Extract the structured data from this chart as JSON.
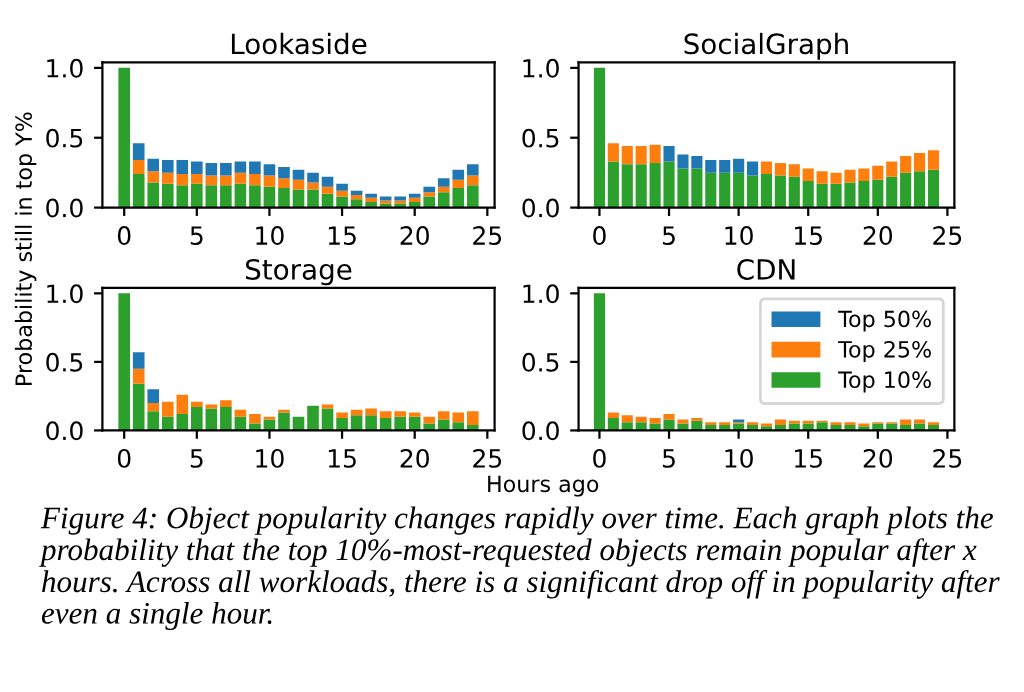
{
  "chart_data": [
    {
      "type": "bar",
      "title": "Lookaside",
      "ylabel": "Probability still in top Y%",
      "stacked": true,
      "x": [
        0,
        1,
        2,
        3,
        4,
        5,
        6,
        7,
        8,
        9,
        10,
        11,
        12,
        13,
        14,
        15,
        16,
        17,
        18,
        19,
        20,
        21,
        22,
        23,
        24
      ],
      "xlim": [
        -1.5,
        25.5
      ],
      "xticks": [
        0,
        5,
        10,
        15,
        20,
        25
      ],
      "ylim": [
        0,
        1.04
      ],
      "yticks": [
        {
          "value": 0,
          "label": "0.0"
        },
        {
          "value": 0.5,
          "label": "0.5"
        },
        {
          "value": 1,
          "label": "1.0"
        }
      ],
      "legend": false,
      "series": [
        {
          "color": "#2ca02c",
          "values": [
            1.0,
            0.24,
            0.18,
            0.17,
            0.16,
            0.17,
            0.16,
            0.16,
            0.17,
            0.16,
            0.15,
            0.14,
            0.13,
            0.13,
            0.1,
            0.08,
            0.06,
            0.04,
            0.03,
            0.03,
            0.04,
            0.08,
            0.11,
            0.14,
            0.16
          ]
        },
        {
          "color": "#ff7f0e",
          "values": [
            0,
            0.1,
            0.08,
            0.08,
            0.08,
            0.07,
            0.07,
            0.07,
            0.08,
            0.08,
            0.08,
            0.07,
            0.07,
            0.05,
            0.05,
            0.04,
            0.03,
            0.03,
            0.02,
            0.02,
            0.03,
            0.03,
            0.04,
            0.06,
            0.07
          ]
        },
        {
          "color": "#1f77b4",
          "values": [
            0,
            0.12,
            0.09,
            0.09,
            0.1,
            0.09,
            0.09,
            0.09,
            0.08,
            0.09,
            0.08,
            0.08,
            0.07,
            0.07,
            0.07,
            0.05,
            0.03,
            0.03,
            0.03,
            0.03,
            0.03,
            0.04,
            0.06,
            0.07,
            0.08
          ]
        }
      ]
    },
    {
      "type": "bar",
      "title": "SocialGraph",
      "stacked": true,
      "x": [
        0,
        1,
        2,
        3,
        4,
        5,
        6,
        7,
        8,
        9,
        10,
        11,
        12,
        13,
        14,
        15,
        16,
        17,
        18,
        19,
        20,
        21,
        22,
        23,
        24
      ],
      "xlim": [
        -1.5,
        25.5
      ],
      "xticks": [
        0,
        5,
        10,
        15,
        20,
        25
      ],
      "ylim": [
        0,
        1.04
      ],
      "yticks": [
        {
          "value": 0,
          "label": "0.0"
        },
        {
          "value": 0.5,
          "label": "0.5"
        },
        {
          "value": 1,
          "label": "1.0"
        }
      ],
      "legend": false,
      "series": [
        {
          "color": "#2ca02c",
          "values": [
            1.0,
            0.33,
            0.31,
            0.31,
            0.32,
            0.33,
            0.28,
            0.28,
            0.25,
            0.25,
            0.25,
            0.23,
            0.24,
            0.23,
            0.22,
            0.19,
            0.17,
            0.17,
            0.18,
            0.19,
            0.2,
            0.22,
            0.25,
            0.26,
            0.27
          ]
        },
        {
          "color": "#ff7f0e",
          "values": [
            0,
            0.13,
            0.13,
            0.13,
            0.13,
            0,
            0,
            0,
            0,
            0,
            0,
            0,
            0.09,
            0.09,
            0.09,
            0.09,
            0.09,
            0.08,
            0.09,
            0.09,
            0.1,
            0.11,
            0.12,
            0.13,
            0.14
          ]
        },
        {
          "color": "#1f77b4",
          "values": [
            0,
            0,
            0,
            0,
            0,
            0.11,
            0.1,
            0.09,
            0.09,
            0.09,
            0.1,
            0.1,
            0,
            0,
            0,
            0,
            0,
            0,
            0,
            0,
            0,
            0,
            0,
            0,
            0
          ]
        }
      ]
    },
    {
      "type": "bar",
      "title": "Storage",
      "xlabel": "Hours ago",
      "stacked": true,
      "x": [
        0,
        1,
        2,
        3,
        4,
        5,
        6,
        7,
        8,
        9,
        10,
        11,
        12,
        13,
        14,
        15,
        16,
        17,
        18,
        19,
        20,
        21,
        22,
        23,
        24
      ],
      "xlim": [
        -1.5,
        25.5
      ],
      "xticks": [
        0,
        5,
        10,
        15,
        20,
        25
      ],
      "ylim": [
        0,
        1.04
      ],
      "yticks": [
        {
          "value": 0,
          "label": "0.0"
        },
        {
          "value": 0.5,
          "label": "0.5"
        },
        {
          "value": 1,
          "label": "1.0"
        }
      ],
      "legend": false,
      "series": [
        {
          "color": "#2ca02c",
          "values": [
            1.0,
            0.34,
            0.14,
            0.1,
            0.12,
            0.17,
            0.16,
            0.17,
            0.1,
            0.05,
            0.08,
            0.13,
            0.1,
            0.18,
            0.16,
            0.09,
            0.11,
            0.11,
            0.09,
            0.1,
            0.1,
            0.05,
            0.08,
            0.06,
            0.04
          ]
        },
        {
          "color": "#ff7f0e",
          "values": [
            0,
            0.11,
            0.06,
            0.11,
            0.14,
            0.04,
            0.03,
            0.05,
            0.05,
            0.07,
            0.02,
            0.02,
            0,
            0,
            0.03,
            0.04,
            0.04,
            0.05,
            0.05,
            0.04,
            0.03,
            0.05,
            0.06,
            0.07,
            0.1
          ]
        },
        {
          "color": "#1f77b4",
          "values": [
            0,
            0.12,
            0.1,
            0,
            0,
            0,
            0,
            0,
            0,
            0,
            0,
            0,
            0,
            0,
            0,
            0,
            0,
            0,
            0,
            0,
            0,
            0,
            0,
            0,
            0
          ]
        }
      ]
    },
    {
      "type": "bar",
      "title": "CDN",
      "stacked": true,
      "x": [
        0,
        1,
        2,
        3,
        4,
        5,
        6,
        7,
        8,
        9,
        10,
        11,
        12,
        13,
        14,
        15,
        16,
        17,
        18,
        19,
        20,
        21,
        22,
        23,
        24
      ],
      "xlim": [
        -1.5,
        25.5
      ],
      "xticks": [
        0,
        5,
        10,
        15,
        20,
        25
      ],
      "ylim": [
        0,
        1.04
      ],
      "yticks": [
        {
          "value": 0,
          "label": "0.0"
        },
        {
          "value": 0.5,
          "label": "0.5"
        },
        {
          "value": 1,
          "label": "1.0"
        }
      ],
      "legend": "top right",
      "annotations": [
        "Figure 4: Object popularity changes rapidly over time. Each graph plots the probability that the top 10%-most-requested objects remain popular after x hours. Across all workloads, there is a significant drop off in popularity after even a single hour."
      ],
      "series": [
        {
          "name": "Top 10%",
          "color": "#2ca02c",
          "values": [
            1.0,
            0.09,
            0.06,
            0.06,
            0.05,
            0.08,
            0.05,
            0.07,
            0.04,
            0.04,
            0.05,
            0.04,
            0.03,
            0.04,
            0.05,
            0.05,
            0.06,
            0.04,
            0.04,
            0.03,
            0.05,
            0.05,
            0.04,
            0.05,
            0.04
          ]
        },
        {
          "name": "Top 25%",
          "color": "#ff7f0e",
          "values": [
            0,
            0.04,
            0.05,
            0.04,
            0.04,
            0.04,
            0.03,
            0.02,
            0.02,
            0.02,
            0.01,
            0.02,
            0.02,
            0.04,
            0.02,
            0.02,
            0.01,
            0.02,
            0.02,
            0.02,
            0.01,
            0.01,
            0.04,
            0.03,
            0.02
          ]
        },
        {
          "name": "Top 50%",
          "color": "#1f77b4",
          "values": [
            0,
            0,
            0,
            0,
            0,
            0,
            0,
            0,
            0,
            0,
            0.02,
            0,
            0,
            0,
            0,
            0,
            0,
            0,
            0,
            0,
            0,
            0,
            0,
            0,
            0
          ]
        }
      ]
    }
  ]
}
